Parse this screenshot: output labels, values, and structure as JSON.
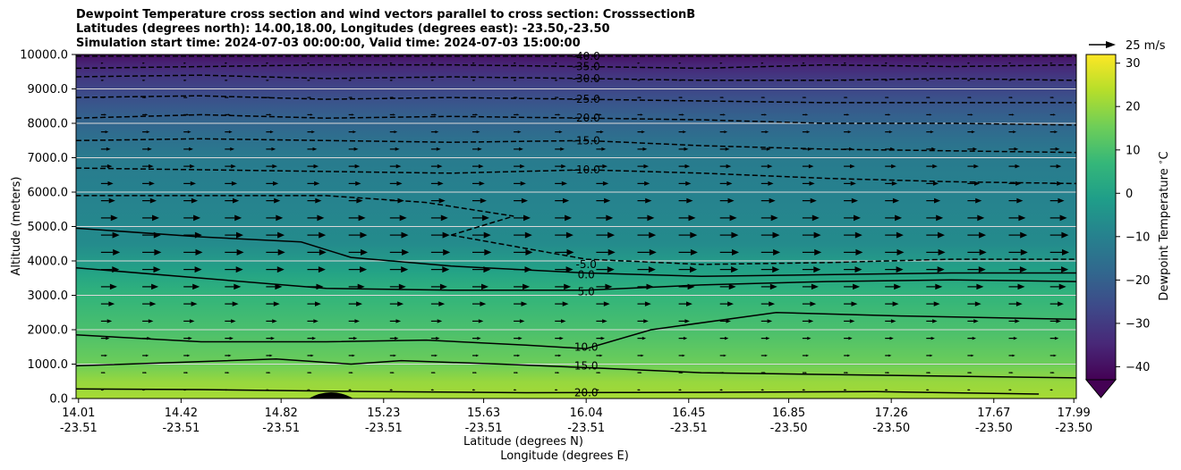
{
  "title_lines": [
    "Dewpoint Temperature cross section and wind vectors parallel to cross section: CrosssectionB",
    "Latitudes (degrees north): 14.00,18.00, Longitudes (degrees east): -23.50,-23.50",
    "Simulation start time: 2024-07-03 00:00:00, Valid time: 2024-07-03 15:00:00"
  ],
  "quiver_key": "25 m/s",
  "colorbar": {
    "label": "Dewpoint Temperature $^\\circ$C",
    "ticks": [
      30,
      20,
      10,
      0,
      -10,
      -20,
      -30,
      -40
    ],
    "range": [
      -43,
      32
    ],
    "colormap": [
      "#440154",
      "#482878",
      "#3e4989",
      "#31688e",
      "#26828e",
      "#1f9e89",
      "#35b779",
      "#6ece58",
      "#b5de2b",
      "#fde725"
    ]
  },
  "chart_data": {
    "type": "contourf-cross-section",
    "xlabel": "Latitude (degrees N)",
    "xlabel2": "Longitude (degrees E)",
    "ylabel": "Altitude (meters)",
    "ylim": [
      0,
      10000
    ],
    "xlim": [
      14.0,
      18.0
    ],
    "yticks": [
      "0.0",
      "1000.0",
      "2000.0",
      "3000.0",
      "4000.0",
      "5000.0",
      "6000.0",
      "7000.0",
      "8000.0",
      "9000.0",
      "10000.0"
    ],
    "xticks": [
      {
        "lat": "14.01",
        "lon": "-23.51"
      },
      {
        "lat": "14.42",
        "lon": "-23.51"
      },
      {
        "lat": "14.82",
        "lon": "-23.51"
      },
      {
        "lat": "15.23",
        "lon": "-23.51"
      },
      {
        "lat": "15.63",
        "lon": "-23.51"
      },
      {
        "lat": "16.04",
        "lon": "-23.51"
      },
      {
        "lat": "16.45",
        "lon": "-23.51"
      },
      {
        "lat": "16.85",
        "lon": "-23.50"
      },
      {
        "lat": "17.26",
        "lon": "-23.50"
      },
      {
        "lat": "17.67",
        "lon": "-23.50"
      },
      {
        "lat": "17.99",
        "lon": "-23.50"
      }
    ],
    "grid": "horizontal",
    "profile": [
      {
        "alt": 0,
        "dewpoint": 22
      },
      {
        "alt": 500,
        "dewpoint": 20
      },
      {
        "alt": 1000,
        "dewpoint": 15
      },
      {
        "alt": 2000,
        "dewpoint": 10
      },
      {
        "alt": 3000,
        "dewpoint": 6
      },
      {
        "alt": 3700,
        "dewpoint": 0
      },
      {
        "alt": 4500,
        "dewpoint": -7
      },
      {
        "alt": 5000,
        "dewpoint": -8
      },
      {
        "alt": 6000,
        "dewpoint": -10
      },
      {
        "alt": 7000,
        "dewpoint": -12
      },
      {
        "alt": 7500,
        "dewpoint": -15
      },
      {
        "alt": 8200,
        "dewpoint": -20
      },
      {
        "alt": 8800,
        "dewpoint": -25
      },
      {
        "alt": 9300,
        "dewpoint": -30
      },
      {
        "alt": 9700,
        "dewpoint": -35
      },
      {
        "alt": 10000,
        "dewpoint": -40
      }
    ],
    "contours": [
      {
        "level": "20.0",
        "style": "solid",
        "points": [
          [
            14.0,
            280
          ],
          [
            14.5,
            260
          ],
          [
            15.2,
            200
          ],
          [
            15.8,
            170
          ],
          [
            16.5,
            180
          ],
          [
            17.2,
            200
          ],
          [
            17.85,
            130
          ]
        ]
      },
      {
        "level": "15.0",
        "style": "solid",
        "points": [
          [
            14.0,
            950
          ],
          [
            14.4,
            1050
          ],
          [
            14.8,
            1150
          ],
          [
            15.1,
            1000
          ],
          [
            15.3,
            1100
          ],
          [
            15.7,
            1000
          ],
          [
            16.04,
            900
          ],
          [
            16.5,
            750
          ],
          [
            17.0,
            700
          ],
          [
            17.5,
            650
          ],
          [
            18.0,
            600
          ]
        ]
      },
      {
        "level": "10.0",
        "style": "solid",
        "points": [
          [
            14.0,
            1850
          ],
          [
            14.5,
            1650
          ],
          [
            15.0,
            1650
          ],
          [
            15.4,
            1700
          ],
          [
            15.8,
            1550
          ],
          [
            16.04,
            1450
          ],
          [
            16.3,
            2000
          ],
          [
            16.8,
            2500
          ],
          [
            17.3,
            2400
          ],
          [
            18.0,
            2300
          ]
        ]
      },
      {
        "level": "5.0",
        "style": "solid",
        "points": [
          [
            14.0,
            3800
          ],
          [
            14.5,
            3500
          ],
          [
            15.0,
            3200
          ],
          [
            15.5,
            3150
          ],
          [
            16.04,
            3150
          ],
          [
            16.5,
            3300
          ],
          [
            17.0,
            3400
          ],
          [
            17.5,
            3450
          ],
          [
            18.0,
            3400
          ]
        ]
      },
      {
        "level": "0.0",
        "style": "solid",
        "points": [
          [
            14.0,
            4950
          ],
          [
            14.5,
            4700
          ],
          [
            14.9,
            4550
          ],
          [
            15.1,
            4100
          ],
          [
            15.5,
            3850
          ],
          [
            16.04,
            3650
          ],
          [
            16.5,
            3550
          ],
          [
            17.0,
            3600
          ],
          [
            17.5,
            3650
          ],
          [
            18.0,
            3650
          ]
        ]
      },
      {
        "level": "-5.0",
        "style": "dashed",
        "points": [
          [
            15.5,
            4750
          ],
          [
            15.75,
            5300
          ],
          [
            15.4,
            5700
          ],
          [
            15.0,
            5900
          ],
          [
            14.0,
            5900
          ]
        ]
      },
      {
        "level": "-5.0",
        "style": "dashed",
        "points": [
          [
            15.5,
            4750
          ],
          [
            16.04,
            4050
          ],
          [
            16.5,
            3900
          ],
          [
            17.0,
            3950
          ],
          [
            17.5,
            4050
          ],
          [
            18.0,
            4050
          ]
        ]
      },
      {
        "level": "-10.0",
        "style": "dashed",
        "points": [
          [
            14.0,
            6700
          ],
          [
            14.5,
            6650
          ],
          [
            15.0,
            6600
          ],
          [
            15.5,
            6550
          ],
          [
            16.04,
            6650
          ],
          [
            16.5,
            6550
          ],
          [
            17.0,
            6400
          ],
          [
            17.5,
            6300
          ],
          [
            18.0,
            6250
          ]
        ]
      },
      {
        "level": "-15.0",
        "style": "dashed",
        "points": [
          [
            14.0,
            7500
          ],
          [
            14.5,
            7550
          ],
          [
            15.0,
            7500
          ],
          [
            15.5,
            7450
          ],
          [
            16.04,
            7500
          ],
          [
            16.5,
            7350
          ],
          [
            17.0,
            7250
          ],
          [
            17.5,
            7200
          ],
          [
            18.0,
            7150
          ]
        ]
      },
      {
        "level": "-20.0",
        "style": "dashed",
        "points": [
          [
            14.0,
            8150
          ],
          [
            14.5,
            8250
          ],
          [
            15.0,
            8150
          ],
          [
            15.5,
            8200
          ],
          [
            16.04,
            8150
          ],
          [
            16.5,
            8100
          ],
          [
            17.0,
            8000
          ],
          [
            17.5,
            8000
          ],
          [
            18.0,
            7950
          ]
        ]
      },
      {
        "level": "-25.0",
        "style": "dashed",
        "points": [
          [
            14.0,
            8750
          ],
          [
            14.5,
            8800
          ],
          [
            15.0,
            8700
          ],
          [
            15.5,
            8750
          ],
          [
            16.04,
            8700
          ],
          [
            16.5,
            8650
          ],
          [
            17.0,
            8600
          ],
          [
            17.5,
            8600
          ],
          [
            18.0,
            8600
          ]
        ]
      },
      {
        "level": "-30.0",
        "style": "dashed",
        "points": [
          [
            14.0,
            9350
          ],
          [
            14.5,
            9400
          ],
          [
            15.0,
            9300
          ],
          [
            15.5,
            9350
          ],
          [
            16.04,
            9300
          ],
          [
            16.5,
            9250
          ],
          [
            17.0,
            9250
          ],
          [
            17.5,
            9300
          ],
          [
            18.0,
            9250
          ]
        ]
      },
      {
        "level": "-35.0",
        "style": "dashed",
        "points": [
          [
            14.0,
            9600
          ],
          [
            14.5,
            9650
          ],
          [
            15.0,
            9700
          ],
          [
            15.5,
            9700
          ],
          [
            16.04,
            9650
          ],
          [
            16.5,
            9600
          ],
          [
            17.0,
            9700
          ],
          [
            17.5,
            9650
          ],
          [
            18.0,
            9700
          ]
        ]
      },
      {
        "level": "-40.0",
        "style": "dashed",
        "points": [
          [
            14.0,
            9950
          ],
          [
            15.0,
            9950
          ],
          [
            16.04,
            9950
          ],
          [
            17.0,
            9950
          ],
          [
            18.0,
            9950
          ]
        ]
      }
    ],
    "contour_labels": [
      {
        "text": "20.0",
        "lat": 16.04,
        "alt": 170
      },
      {
        "text": "15.0",
        "lat": 16.04,
        "alt": 950
      },
      {
        "text": "10.0",
        "lat": 16.04,
        "alt": 1500
      },
      {
        "text": "5.0",
        "lat": 16.04,
        "alt": 3100
      },
      {
        "text": "0.0",
        "lat": 16.04,
        "alt": 3600
      },
      {
        "text": "-5.0",
        "lat": 16.04,
        "alt": 3900
      },
      {
        "text": "-10.0",
        "lat": 16.04,
        "alt": 6650
      },
      {
        "text": "-15.0",
        "lat": 16.04,
        "alt": 7500
      },
      {
        "text": "-20.0",
        "lat": 16.04,
        "alt": 8150
      },
      {
        "text": "-25.0",
        "lat": 16.04,
        "alt": 8700
      },
      {
        "text": "-30.0",
        "lat": 16.04,
        "alt": 9300
      },
      {
        "text": "-35.0",
        "lat": 16.04,
        "alt": 9650
      },
      {
        "text": "-40.0",
        "lat": 16.04,
        "alt": 9950
      }
    ],
    "wind_profile": [
      {
        "alt": 0,
        "u": 2
      },
      {
        "alt": 1000,
        "u": 5
      },
      {
        "alt": 2000,
        "u": 9
      },
      {
        "alt": 3000,
        "u": 14
      },
      {
        "alt": 4000,
        "u": 18
      },
      {
        "alt": 5000,
        "u": 17
      },
      {
        "alt": 6000,
        "u": 12
      },
      {
        "alt": 7000,
        "u": 10
      },
      {
        "alt": 8000,
        "u": 6
      },
      {
        "alt": 9000,
        "u": 3
      },
      {
        "alt": 10000,
        "u": 2
      }
    ]
  }
}
